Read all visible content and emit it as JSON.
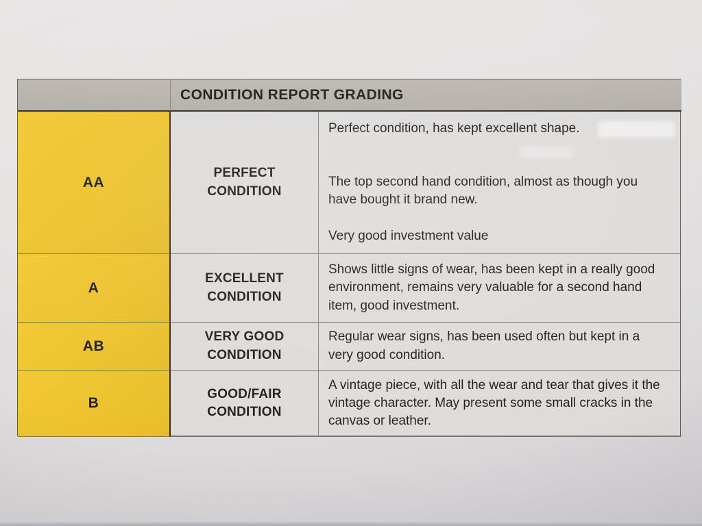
{
  "document": {
    "title": "CONDITION REPORT GRADING",
    "rows": [
      {
        "grade": "AA",
        "name": "PERFECT\nCONDITION",
        "paragraphs": [
          "Perfect condition, has kept excellent shape.",
          "The top second hand condition, almost as though you have bought it brand new.",
          "Very good investment value"
        ]
      },
      {
        "grade": "A",
        "name": "EXCELLENT\nCONDITION",
        "paragraphs": [
          "Shows little signs of wear, has been kept in a really good environment, remains very valuable for a second hand item, good investment."
        ]
      },
      {
        "grade": "AB",
        "name": "VERY GOOD\nCONDITION",
        "paragraphs": [
          "Regular wear signs, has been used often but kept in a very good condition."
        ]
      },
      {
        "grade": "B",
        "name": "GOOD/FAIR\nCONDITION",
        "paragraphs": [
          "A vintage piece, with all the wear and tear that gives it the vintage character. May present some small cracks in the canvas or leather."
        ]
      }
    ],
    "colors": {
      "grade_column_yellow": "#ecc32e",
      "header_band_gray": "#b5b0a9",
      "cell_background": "#dedcda",
      "paper_background": "#e4e2e1",
      "text": "#211f1d",
      "heavy_border": "#2f2c29"
    }
  }
}
